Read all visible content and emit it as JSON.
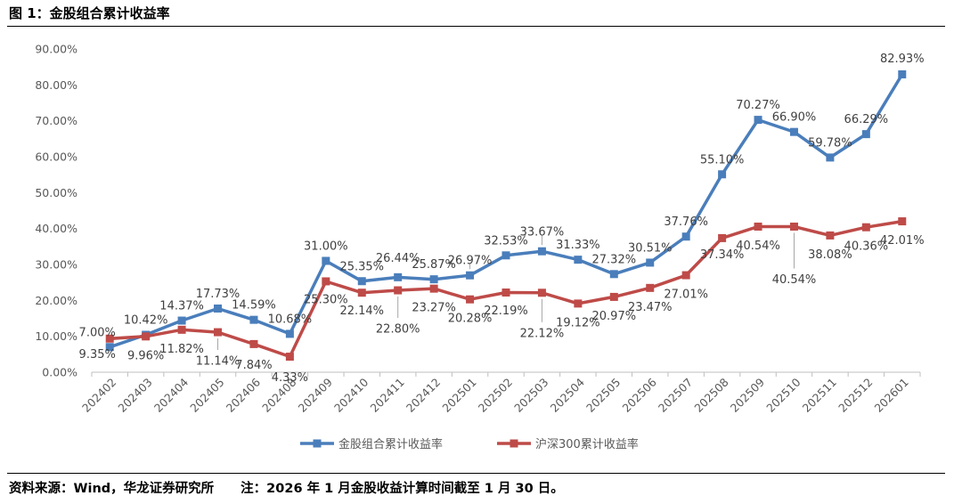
{
  "figure_title": "图 1：金股组合累计收益率",
  "source_text": "资料来源：Wind，华龙证券研究所",
  "note_text": "注：2026 年 1 月金股收益计算时间截至 1 月 30 日。",
  "colors": {
    "series1": "#4A7EBB",
    "series2": "#BE4B48",
    "axis": "#BFBFBF",
    "label": "#404040"
  },
  "chart_data": {
    "type": "line",
    "title": "",
    "xlabel": "",
    "ylabel": "",
    "ylim": [
      0,
      90
    ],
    "yticks": [
      "0.00%",
      "10.00%",
      "20.00%",
      "30.00%",
      "40.00%",
      "50.00%",
      "60.00%",
      "70.00%",
      "80.00%",
      "90.00%"
    ],
    "grid": false,
    "legend_position": "bottom",
    "categories": [
      "202402",
      "202403",
      "202404",
      "202405",
      "202406",
      "202408",
      "202409",
      "202410",
      "202411",
      "202412",
      "202501",
      "202502",
      "202503",
      "202504",
      "202505",
      "202506",
      "202507",
      "202508",
      "202509",
      "202510",
      "202511",
      "202512",
      "202601"
    ],
    "series": [
      {
        "name": "金股组合累计收益率",
        "values": [
          7.0,
          10.42,
          14.37,
          17.73,
          14.59,
          10.68,
          31.0,
          25.35,
          26.44,
          25.87,
          26.97,
          32.53,
          33.67,
          31.33,
          27.32,
          30.51,
          37.76,
          55.1,
          70.27,
          66.9,
          59.78,
          66.29,
          82.93
        ],
        "labels": [
          "7.00%",
          "10.42%",
          "14.37%",
          "17.73%",
          "14.59%",
          "10.68%",
          "31.00%",
          "25.35%",
          "26.44%",
          "25.87%",
          "26.97%",
          "32.53%",
          "33.67%",
          "31.33%",
          "27.32%",
          "30.51%",
          "37.76%",
          "55.10%",
          "70.27%",
          "66.90%",
          "59.78%",
          "66.29%",
          "82.93%"
        ]
      },
      {
        "name": "沪深300累计收益率",
        "values": [
          9.35,
          9.96,
          11.82,
          11.14,
          7.84,
          4.33,
          25.3,
          22.14,
          22.8,
          23.27,
          20.28,
          22.19,
          22.12,
          19.12,
          20.97,
          23.47,
          27.01,
          37.34,
          40.54,
          40.54,
          38.08,
          40.36,
          42.01
        ],
        "labels": [
          "9.35%",
          "9.96%",
          "11.82%",
          "11.14%",
          "7.84%",
          "4.33%",
          "25.30%",
          "22.14%",
          "22.80%",
          "23.27%",
          "20.28%",
          "22.19%",
          "22.12%",
          "19.12%",
          "20.97%",
          "23.47%",
          "27.01%",
          "37.34%",
          "40.54%",
          "40.54%",
          "38.08%",
          "40.36%",
          "42.01%"
        ]
      }
    ]
  }
}
